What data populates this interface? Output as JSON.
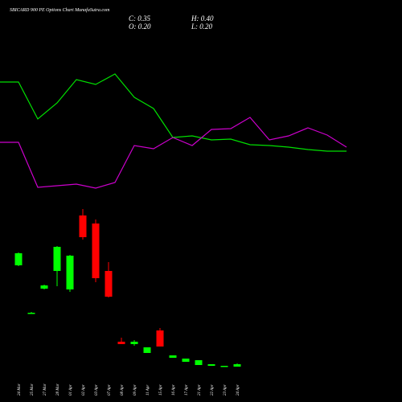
{
  "chart_data": [
    {
      "type": "candlestick",
      "title": "SBICARD 900 PE Options Chart MunafaSutra.com",
      "ohlc_labels": [
        "C: 0.35",
        "H: 0.40",
        "O: 0.20",
        "L: 0.20"
      ],
      "categories": [
        "24 Mar",
        "25 Mar",
        "27 Mar",
        "28 Mar",
        "01 Apr",
        "02 Apr",
        "03 Apr",
        "07 Apr",
        "08 Apr",
        "09 Apr",
        "11 Apr",
        "15 Apr",
        "16 Apr",
        "17 Apr",
        "21 Apr",
        "22 Apr",
        "23 Apr",
        "24 Apr"
      ],
      "open": [
        6.5,
        3.55,
        5.05,
        6.15,
        5.0,
        9.6,
        9.1,
        6.15,
        1.75,
        1.6,
        1.05,
        2.45,
        0.75,
        0.5,
        0.3,
        0.25,
        0.2,
        0.2
      ],
      "high": [
        7.3,
        3.6,
        5.3,
        7.7,
        7.15,
        10.0,
        9.35,
        6.7,
        2.0,
        1.85,
        1.4,
        2.6,
        0.9,
        0.7,
        0.6,
        0.35,
        0.25,
        0.4
      ],
      "low": [
        6.45,
        3.5,
        5.0,
        5.2,
        4.85,
        8.1,
        5.45,
        4.5,
        1.6,
        1.5,
        1.05,
        1.45,
        0.75,
        0.5,
        0.3,
        0.25,
        0.2,
        0.2
      ],
      "close": [
        7.25,
        3.55,
        5.25,
        7.65,
        7.1,
        8.25,
        5.7,
        4.55,
        1.6,
        1.75,
        1.4,
        1.45,
        0.9,
        0.7,
        0.6,
        0.35,
        0.25,
        0.35
      ],
      "up_color": "#00ff00",
      "down_color": "#ff0000",
      "ylim": [
        0,
        23
      ]
    },
    {
      "type": "line",
      "series": [
        {
          "color": "#00e000",
          "values": [
            398,
            398,
            352,
            372,
            401,
            395,
            408,
            379,
            365,
            329,
            331,
            326,
            327,
            320,
            319,
            317,
            314,
            312,
            312
          ]
        },
        {
          "color": "#cc00cc",
          "values": [
            323,
            323,
            267,
            269,
            271,
            266,
            273,
            319,
            315,
            329,
            319,
            339,
            340,
            354,
            326,
            331,
            341,
            332,
            317
          ]
        }
      ],
      "ylim": [
        0,
        500
      ]
    }
  ]
}
